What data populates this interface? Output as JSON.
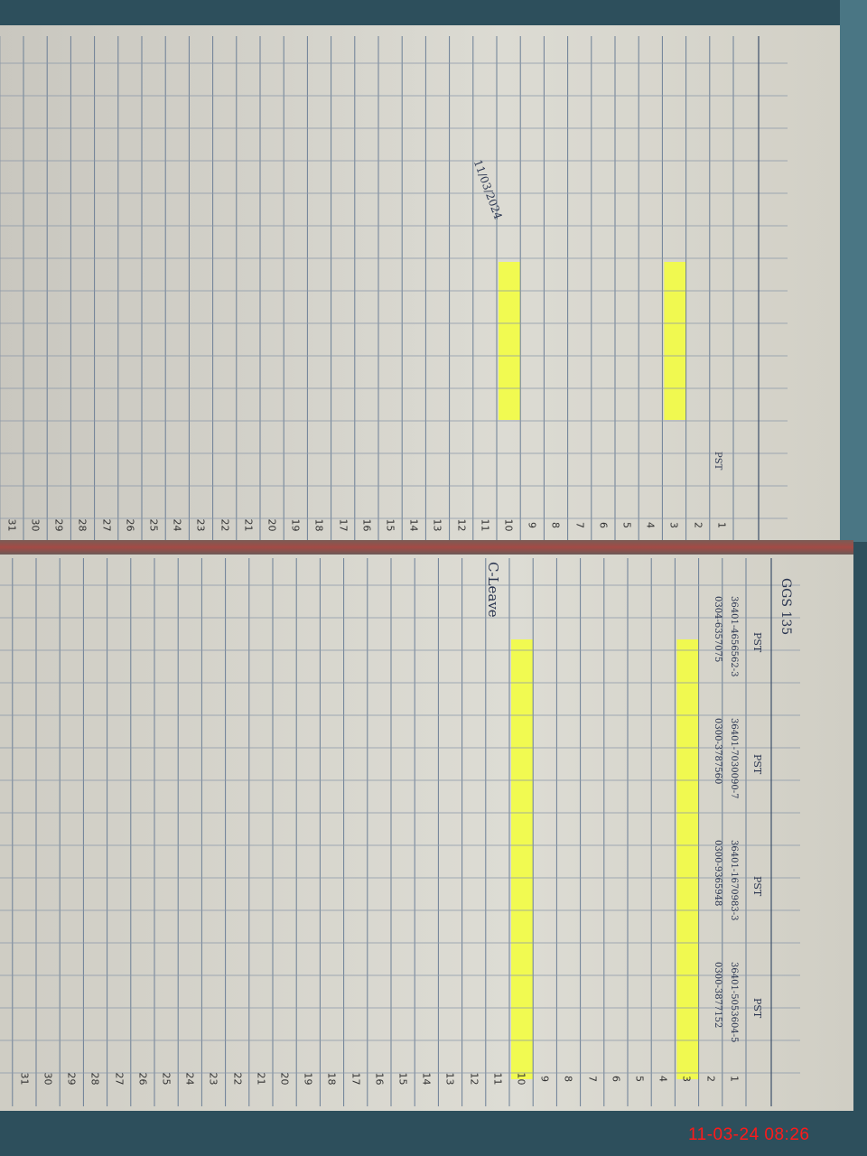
{
  "timestamp": "11-03-24 08:26",
  "rows": [
    "1",
    "2",
    "3",
    "4",
    "5",
    "6",
    "7",
    "8",
    "9",
    "10",
    "11",
    "12",
    "13",
    "14",
    "15",
    "16",
    "17",
    "18",
    "19",
    "20",
    "21",
    "22",
    "23",
    "24",
    "25",
    "26",
    "27",
    "28",
    "29",
    "30",
    "31"
  ],
  "left_page": {
    "header_note": "PST",
    "highlight_rows": [
      3,
      10
    ],
    "stamp_date": "11/03/2024"
  },
  "right_page": {
    "header_code": "GGS 135",
    "staff": [
      {
        "designation": "PST",
        "cnic": "36401-4656562-3",
        "phone": "0304-6357075"
      },
      {
        "designation": "PST",
        "cnic": "36401-7030090-7",
        "phone": "0300-3787560"
      },
      {
        "designation": "PST",
        "cnic": "36401-1670983-3",
        "phone": "0300-9365948"
      },
      {
        "designation": "PST",
        "cnic": "36401-5053604-5",
        "phone": "0300-3877152"
      }
    ],
    "leave_note": "C-Leave",
    "highlight_rows": [
      3,
      10
    ]
  },
  "colors": {
    "highlight": "#f4ff3a",
    "ink": "#2a3550",
    "timestamp": "#ff1a1a",
    "paper": "#d9d8d0"
  }
}
